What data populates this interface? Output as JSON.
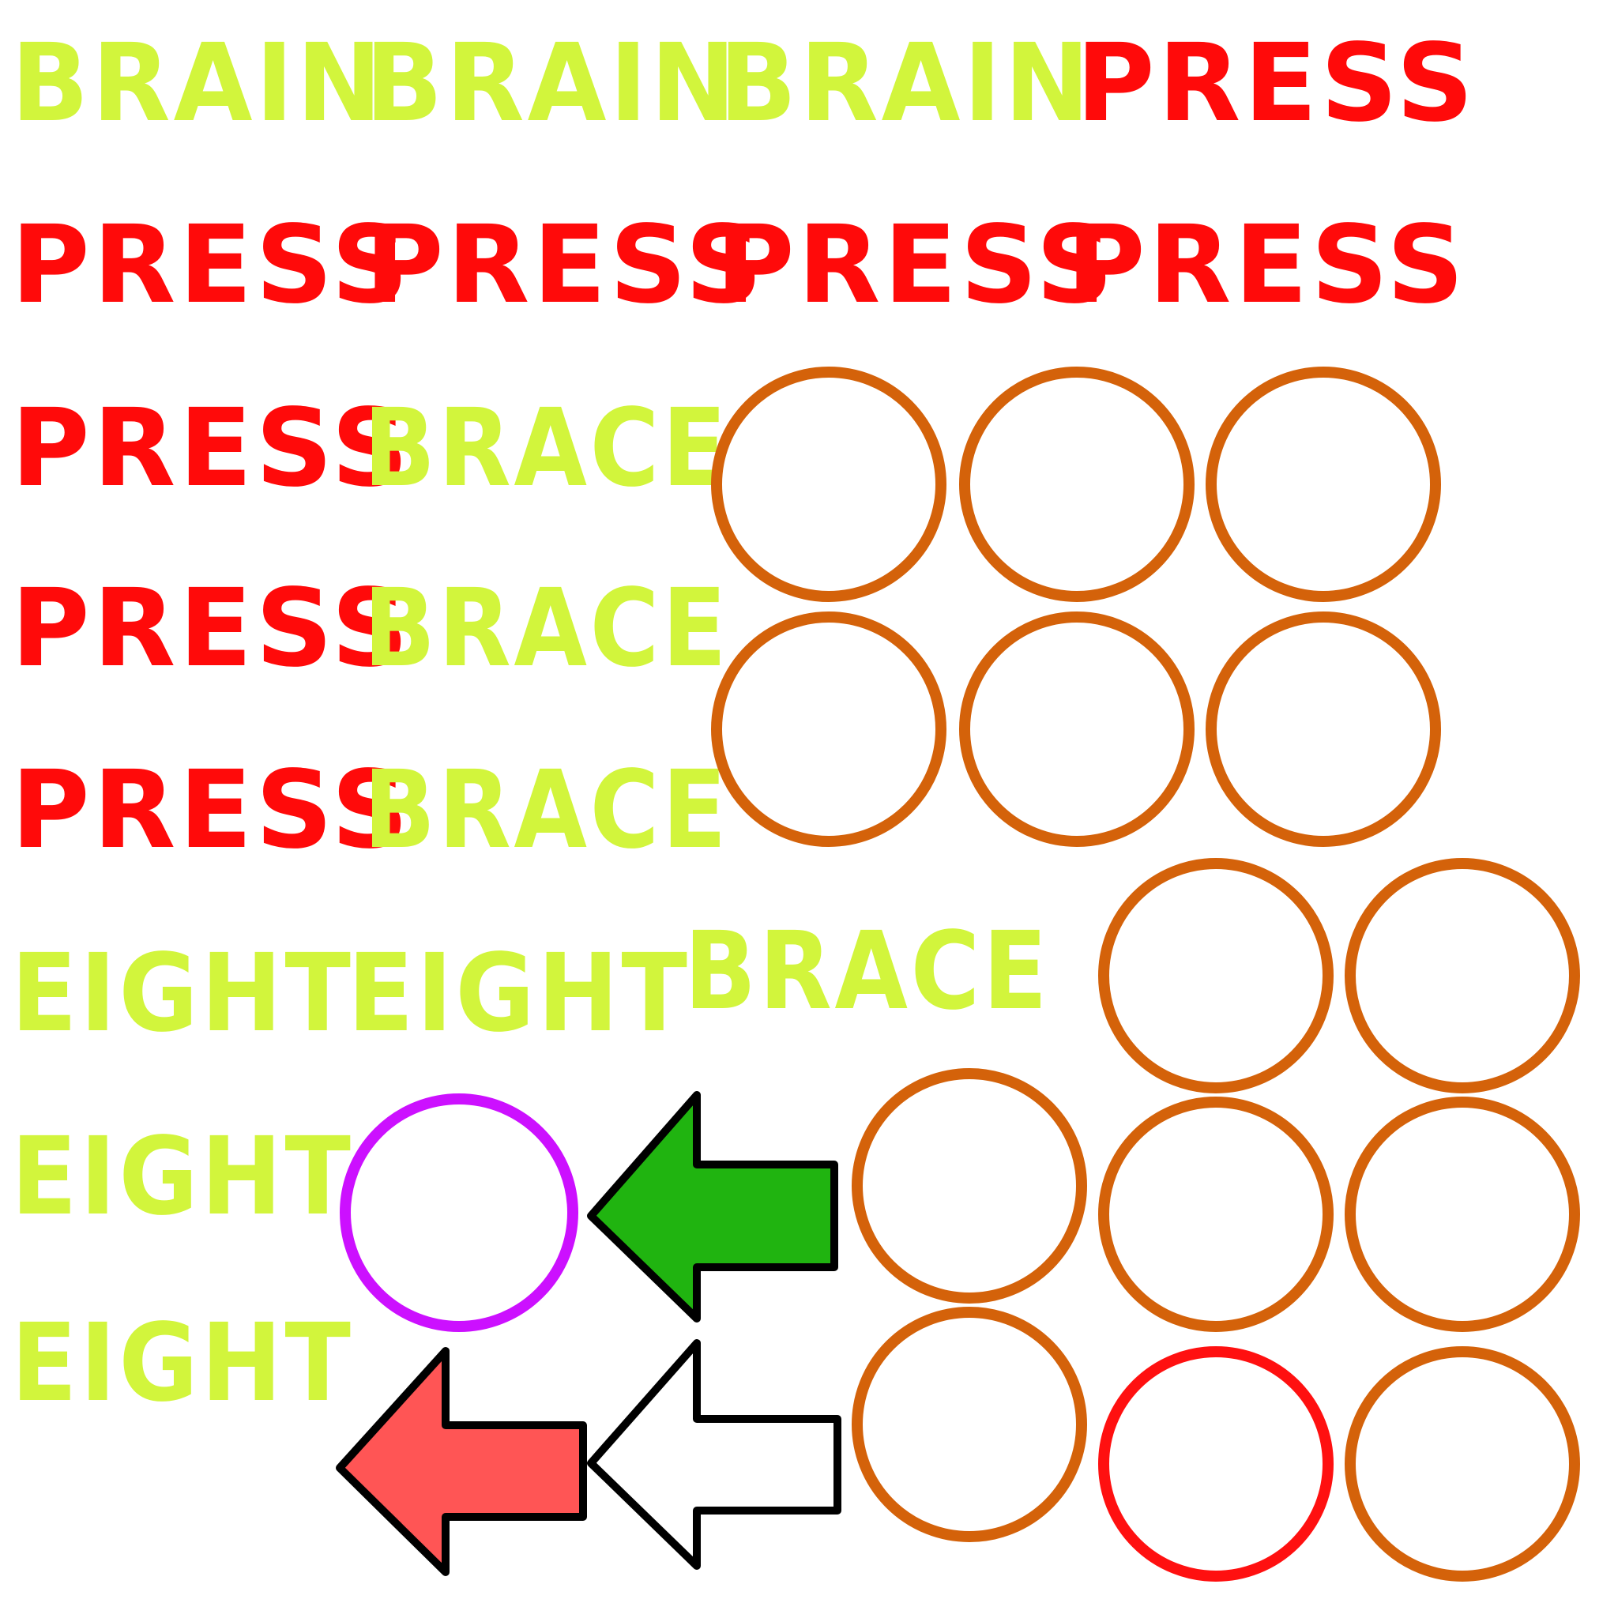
{
  "colors": {
    "background": "#ffffff",
    "brain": "#d2f53c",
    "press": "#ff0a0a",
    "brace": "#d2f53c",
    "eight": "#d2f53c",
    "ring_default": "#d4620a",
    "ring_selected": "#cc10ff",
    "ring_target": "#ff1010",
    "arrow_green": "#20b410",
    "arrow_white": "#ffffff",
    "arrow_red": "#ff5555",
    "arrow_outline": "#000000"
  },
  "words": {
    "brain": "BRAIN",
    "press": "PRESS",
    "brace": "BRACE",
    "eight": "EIGHT"
  },
  "board": {
    "rings": [
      {
        "state": "empty"
      },
      {
        "state": "empty"
      },
      {
        "state": "empty"
      },
      {
        "state": "empty"
      },
      {
        "state": "empty"
      },
      {
        "state": "empty"
      },
      {
        "state": "empty"
      },
      {
        "state": "empty"
      },
      {
        "state": "selected"
      },
      {
        "state": "empty"
      },
      {
        "state": "empty"
      },
      {
        "state": "empty"
      },
      {
        "state": "empty"
      },
      {
        "state": "target"
      },
      {
        "state": "empty"
      }
    ]
  },
  "arrows": [
    {
      "color": "green",
      "direction": "left"
    },
    {
      "color": "white",
      "direction": "left"
    },
    {
      "color": "red",
      "direction": "left"
    }
  ]
}
